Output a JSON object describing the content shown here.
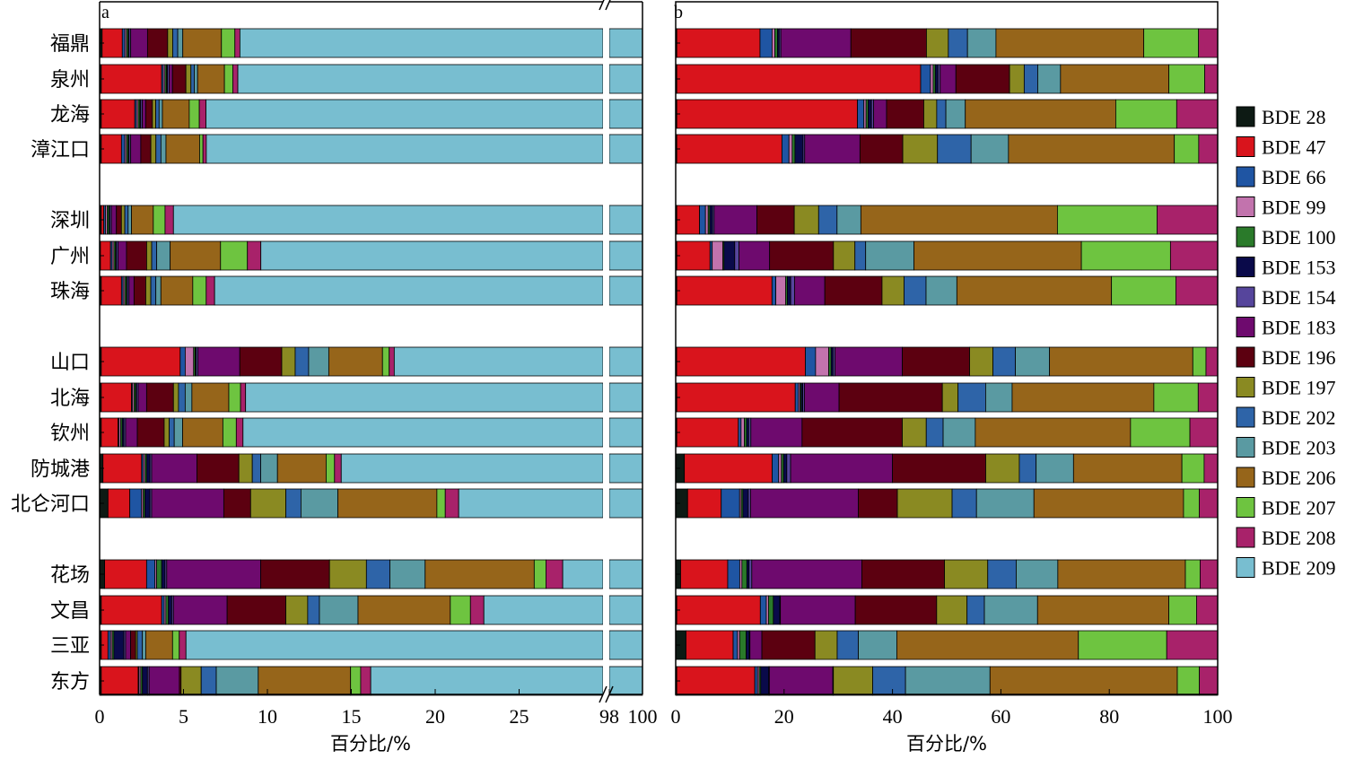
{
  "chart_data": {
    "type": "bar",
    "orientation": "horizontal-stacked",
    "categories": [
      "福鼎",
      "泉州",
      "龙海",
      "漳江口",
      "深圳",
      "广州",
      "珠海",
      "山口",
      "北海",
      "钦州",
      "防城港",
      "北仑河口",
      "花场",
      "文昌",
      "三亚",
      "东方"
    ],
    "groups": [
      [
        0,
        1,
        2,
        3
      ],
      [
        4,
        5,
        6
      ],
      [
        7,
        8,
        9,
        10,
        11
      ],
      [
        12,
        13,
        14,
        15
      ]
    ],
    "legend": {
      "placement": "right",
      "entries": [
        "BDE 28",
        "BDE 47",
        "BDE 66",
        "BDE 99",
        "BDE 100",
        "BDE 153",
        "BDE 154",
        "BDE 183",
        "BDE 196",
        "BDE 197",
        "BDE 202",
        "BDE 203",
        "BDE 206",
        "BDE 207",
        "BDE 208",
        "BDE 209"
      ],
      "colors": [
        "#0d1a14",
        "#d9141c",
        "#1f55a3",
        "#c273ad",
        "#2a7a2a",
        "#0a0a4a",
        "#56459c",
        "#6e0a6e",
        "#5c0010",
        "#8a8a22",
        "#2e64a8",
        "#5a9aa2",
        "#96651a",
        "#6ec440",
        "#a8226a",
        "#78bed0"
      ]
    },
    "panels": [
      {
        "letter": "a",
        "xlabel": "百分比/%",
        "xticks": [
          "0",
          "5",
          "10",
          "15",
          "20",
          "25",
          "98",
          "100"
        ],
        "axis_break": {
          "from": 30,
          "to": 98
        },
        "xlim": [
          0,
          100
        ],
        "rows": [
          [
            0.15,
            1.2,
            0.15,
            0.1,
            0.1,
            0.05,
            0.1,
            1.0,
            1.2,
            0.3,
            0.3,
            0.3,
            2.3,
            0.8,
            0.3,
            91.5
          ],
          [
            0.1,
            3.6,
            0.1,
            0.1,
            0.1,
            0.05,
            0.1,
            0.2,
            0.8,
            0.3,
            0.2,
            0.2,
            1.6,
            0.5,
            0.3,
            91.9
          ],
          [
            0.1,
            2.0,
            0.1,
            0.1,
            0.1,
            0.05,
            0.1,
            0.2,
            0.4,
            0.2,
            0.2,
            0.2,
            1.6,
            0.6,
            0.4,
            93.8
          ],
          [
            0.1,
            1.2,
            0.2,
            0.1,
            0.1,
            0.05,
            0.1,
            0.6,
            0.6,
            0.3,
            0.3,
            0.3,
            2.0,
            0.2,
            0.2,
            93.5
          ],
          [
            0.1,
            0.15,
            0.1,
            0.1,
            0.1,
            0.05,
            0.1,
            0.3,
            0.3,
            0.2,
            0.2,
            0.2,
            1.3,
            0.7,
            0.5,
            95.6
          ],
          [
            0.05,
            0.6,
            0.1,
            0.1,
            0.1,
            0.05,
            0.1,
            0.5,
            1.2,
            0.3,
            0.3,
            0.8,
            3.0,
            1.6,
            0.8,
            90.3
          ],
          [
            0.1,
            1.2,
            0.1,
            0.1,
            0.1,
            0.05,
            0.1,
            0.3,
            0.7,
            0.3,
            0.3,
            0.3,
            1.9,
            0.8,
            0.5,
            93.1
          ],
          [
            0.1,
            4.7,
            0.3,
            0.5,
            0.1,
            0.05,
            0.1,
            2.5,
            2.5,
            0.8,
            0.8,
            1.2,
            3.2,
            0.4,
            0.3,
            82.4
          ],
          [
            0.1,
            1.8,
            0.05,
            0.1,
            0.1,
            0.05,
            0.1,
            0.5,
            1.6,
            0.3,
            0.4,
            0.4,
            2.2,
            0.7,
            0.3,
            91.3
          ],
          [
            0.1,
            1.0,
            0.05,
            0.1,
            0.1,
            0.1,
            0.1,
            0.7,
            1.6,
            0.3,
            0.3,
            0.5,
            2.4,
            0.8,
            0.4,
            91.5
          ],
          [
            0.2,
            2.3,
            0.1,
            0.1,
            0.1,
            0.2,
            0.1,
            2.7,
            2.5,
            0.8,
            0.5,
            1.0,
            2.9,
            0.5,
            0.4,
            85.6
          ],
          [
            0.5,
            1.3,
            0.7,
            0.1,
            0.1,
            0.3,
            0.1,
            4.3,
            1.6,
            2.1,
            0.9,
            2.2,
            5.9,
            0.5,
            0.8,
            78.6
          ],
          [
            0.3,
            2.5,
            0.5,
            0.1,
            0.3,
            0.2,
            0.1,
            5.6,
            4.1,
            2.2,
            1.4,
            2.1,
            6.5,
            0.7,
            1.0,
            72.4
          ],
          [
            0.1,
            3.6,
            0.15,
            0.1,
            0.15,
            0.2,
            0.1,
            3.2,
            3.5,
            1.3,
            0.7,
            2.3,
            5.5,
            1.2,
            0.8,
            77.1
          ],
          [
            0.1,
            0.4,
            0.15,
            0.1,
            0.1,
            0.6,
            0.1,
            0.3,
            0.3,
            0.1,
            0.3,
            0.2,
            1.6,
            0.4,
            0.4,
            94.9
          ],
          [
            0.1,
            2.2,
            0.05,
            0.1,
            0.1,
            0.3,
            0.1,
            1.8,
            0.1,
            1.2,
            0.9,
            2.5,
            5.5,
            0.6,
            0.6,
            83.8
          ]
        ]
      },
      {
        "letter": "b",
        "xlabel": "百分比/%",
        "xticks": [
          "0",
          "20",
          "40",
          "60",
          "80",
          "100"
        ],
        "xlim": [
          0,
          100
        ],
        "rows": [
          [
            0.2,
            15.2,
            2.2,
            0.5,
            0.5,
            0.3,
            0.3,
            12.8,
            13.8,
            4.0,
            3.5,
            5.2,
            27.0,
            10.0,
            3.5,
            0
          ],
          [
            0.2,
            45.0,
            1.8,
            0.5,
            0.4,
            0.5,
            0.4,
            2.9,
            9.9,
            2.7,
            2.5,
            4.2,
            20.0,
            6.6,
            2.4,
            0
          ],
          [
            0.2,
            33.5,
            1.2,
            0.4,
            0.4,
            0.6,
            0.4,
            2.4,
            6.9,
            2.4,
            1.7,
            3.6,
            27.9,
            11.3,
            7.6,
            0
          ],
          [
            0.2,
            19.4,
            1.3,
            0.6,
            0.5,
            1.5,
            0.3,
            10.2,
            7.9,
            6.4,
            6.2,
            6.9,
            30.6,
            4.5,
            3.5,
            0
          ],
          [
            0.2,
            4.2,
            1.1,
            0.5,
            0.3,
            0.5,
            0.3,
            7.9,
            6.9,
            4.5,
            3.4,
            4.4,
            36.3,
            18.4,
            11.2,
            0
          ],
          [
            0.2,
            6.2,
            0.4,
            2.0,
            0.2,
            2.0,
            0.8,
            5.7,
            11.9,
            4.0,
            2.0,
            9.0,
            31.2,
            16.6,
            8.8,
            0
          ],
          [
            0.2,
            17.3,
            0.7,
            1.8,
            0.3,
            0.6,
            0.7,
            5.5,
            10.4,
            4.0,
            4.0,
            5.6,
            28.1,
            11.7,
            7.6,
            0
          ],
          [
            0.2,
            26.4,
            2.1,
            2.7,
            0.5,
            0.4,
            0.4,
            13.8,
            13.8,
            4.8,
            4.6,
            7.0,
            29.4,
            2.7,
            2.4,
            0
          ],
          [
            0.2,
            21.9,
            0.6,
            0.3,
            0.2,
            0.3,
            0.3,
            6.4,
            19.1,
            2.9,
            5.1,
            4.9,
            26.2,
            8.2,
            3.6,
            0
          ],
          [
            0.2,
            11.3,
            0.5,
            0.6,
            0.4,
            0.4,
            0.4,
            9.4,
            18.4,
            4.4,
            3.1,
            5.9,
            28.5,
            10.9,
            5.1,
            0
          ],
          [
            1.6,
            16.2,
            1.2,
            0.5,
            0.4,
            0.6,
            0.7,
            18.8,
            17.2,
            6.2,
            3.1,
            6.9,
            20.0,
            4.1,
            2.5,
            0
          ],
          [
            2.2,
            6.2,
            3.4,
            0.3,
            0.3,
            1.0,
            0.4,
            19.9,
            7.2,
            10.1,
            4.5,
            10.6,
            27.6,
            2.9,
            3.4,
            0
          ],
          [
            0.9,
            8.6,
            2.2,
            0.4,
            0.9,
            0.4,
            0.5,
            20.1,
            15.1,
            7.9,
            5.2,
            7.6,
            23.3,
            2.7,
            3.2,
            0
          ],
          [
            0.2,
            15.4,
            1.1,
            0.4,
            0.9,
            1.2,
            0.1,
            13.8,
            15.0,
            5.6,
            3.2,
            9.8,
            24.2,
            5.1,
            3.9,
            0
          ],
          [
            1.9,
            8.7,
            0.8,
            0.4,
            1.2,
            0.6,
            0.1,
            2.2,
            9.8,
            4.1,
            3.9,
            7.1,
            33.5,
            16.3,
            9.4,
            0
          ],
          [
            0.2,
            14.5,
            0.5,
            0.3,
            0.3,
            1.5,
            0.1,
            11.8,
            0.1,
            7.3,
            6.1,
            15.7,
            34.8,
            4.1,
            3.4,
            0
          ]
        ]
      }
    ]
  }
}
